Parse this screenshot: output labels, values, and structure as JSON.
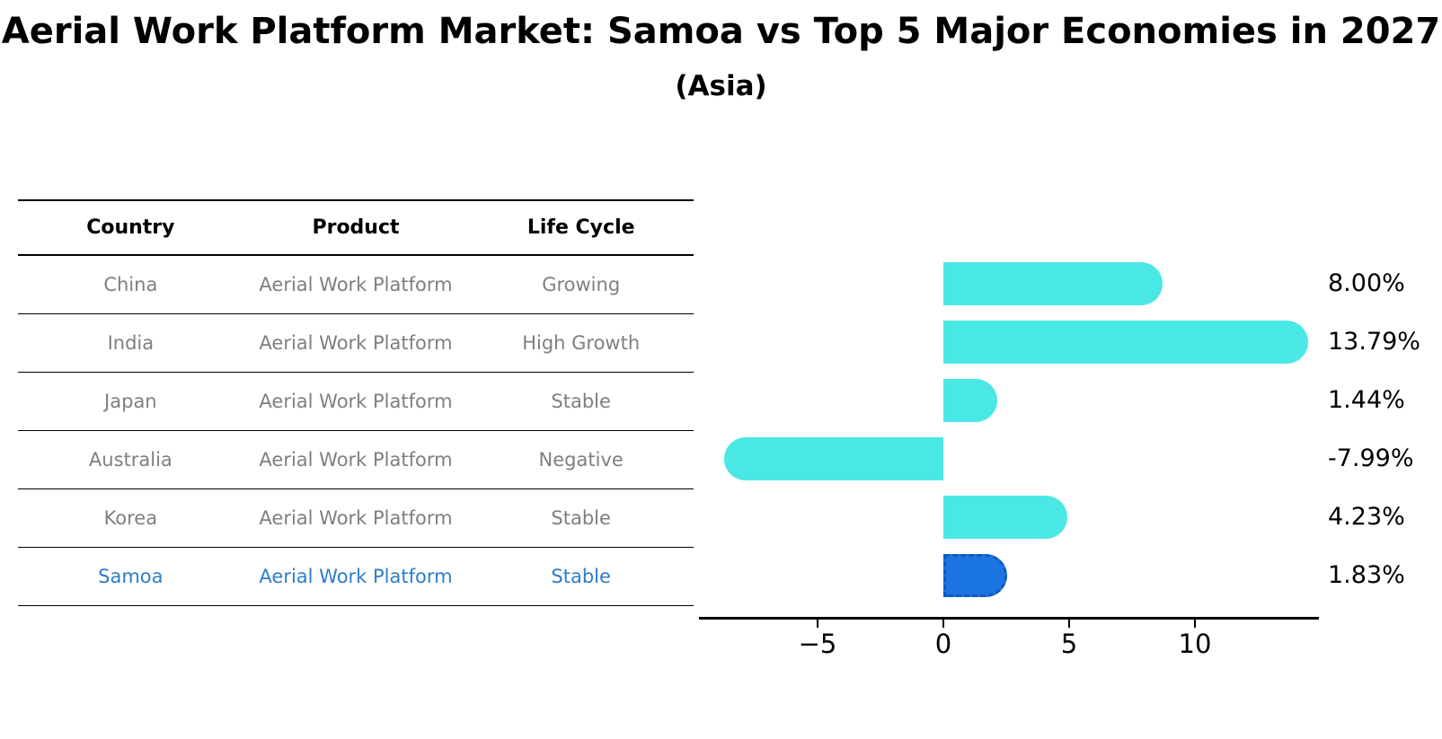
{
  "title": "Aerial Work Platform Market: Samoa vs Top 5 Major Economies in 2027",
  "subtitle": "(Asia)",
  "table": {
    "headers": [
      "Country",
      "Product",
      "Life Cycle"
    ],
    "rows": [
      {
        "country": "China",
        "product": "Aerial Work Platform",
        "life_cycle": "Growing",
        "highlight": false
      },
      {
        "country": "India",
        "product": "Aerial Work Platform",
        "life_cycle": "High Growth",
        "highlight": false
      },
      {
        "country": "Japan",
        "product": "Aerial Work Platform",
        "life_cycle": "Stable",
        "highlight": false
      },
      {
        "country": "Australia",
        "product": "Aerial Work Platform",
        "life_cycle": "Negative",
        "highlight": false
      },
      {
        "country": "Korea",
        "product": "Aerial Work Platform",
        "life_cycle": "Stable",
        "highlight": false
      },
      {
        "country": "Samoa",
        "product": "Aerial Work Platform",
        "life_cycle": "Stable",
        "highlight": true
      }
    ]
  },
  "chart_data": {
    "type": "bar",
    "orientation": "horizontal",
    "categories": [
      "China",
      "India",
      "Japan",
      "Australia",
      "Korea",
      "Samoa"
    ],
    "values": [
      8.0,
      13.79,
      1.44,
      -7.99,
      4.23,
      1.83
    ],
    "value_labels": [
      "8.00%",
      "13.79%",
      "1.44%",
      "-7.99%",
      "4.23%",
      "1.83%"
    ],
    "highlight_index": 5,
    "x_ticks": [
      -5,
      0,
      5,
      10
    ],
    "x_tick_labels": [
      "−5",
      "0",
      "5",
      "10"
    ],
    "xlim": [
      -9.7,
      14.9
    ],
    "grid": false,
    "legend": "none",
    "bar_color": "#4ae8e4",
    "highlight_bar_color": "#1c76e2",
    "highlight_border_color": "#1358c0",
    "highlight_text_color": "#2e7dc6",
    "table_text_color": "#7f7f7f",
    "axis_color": "#000000"
  }
}
